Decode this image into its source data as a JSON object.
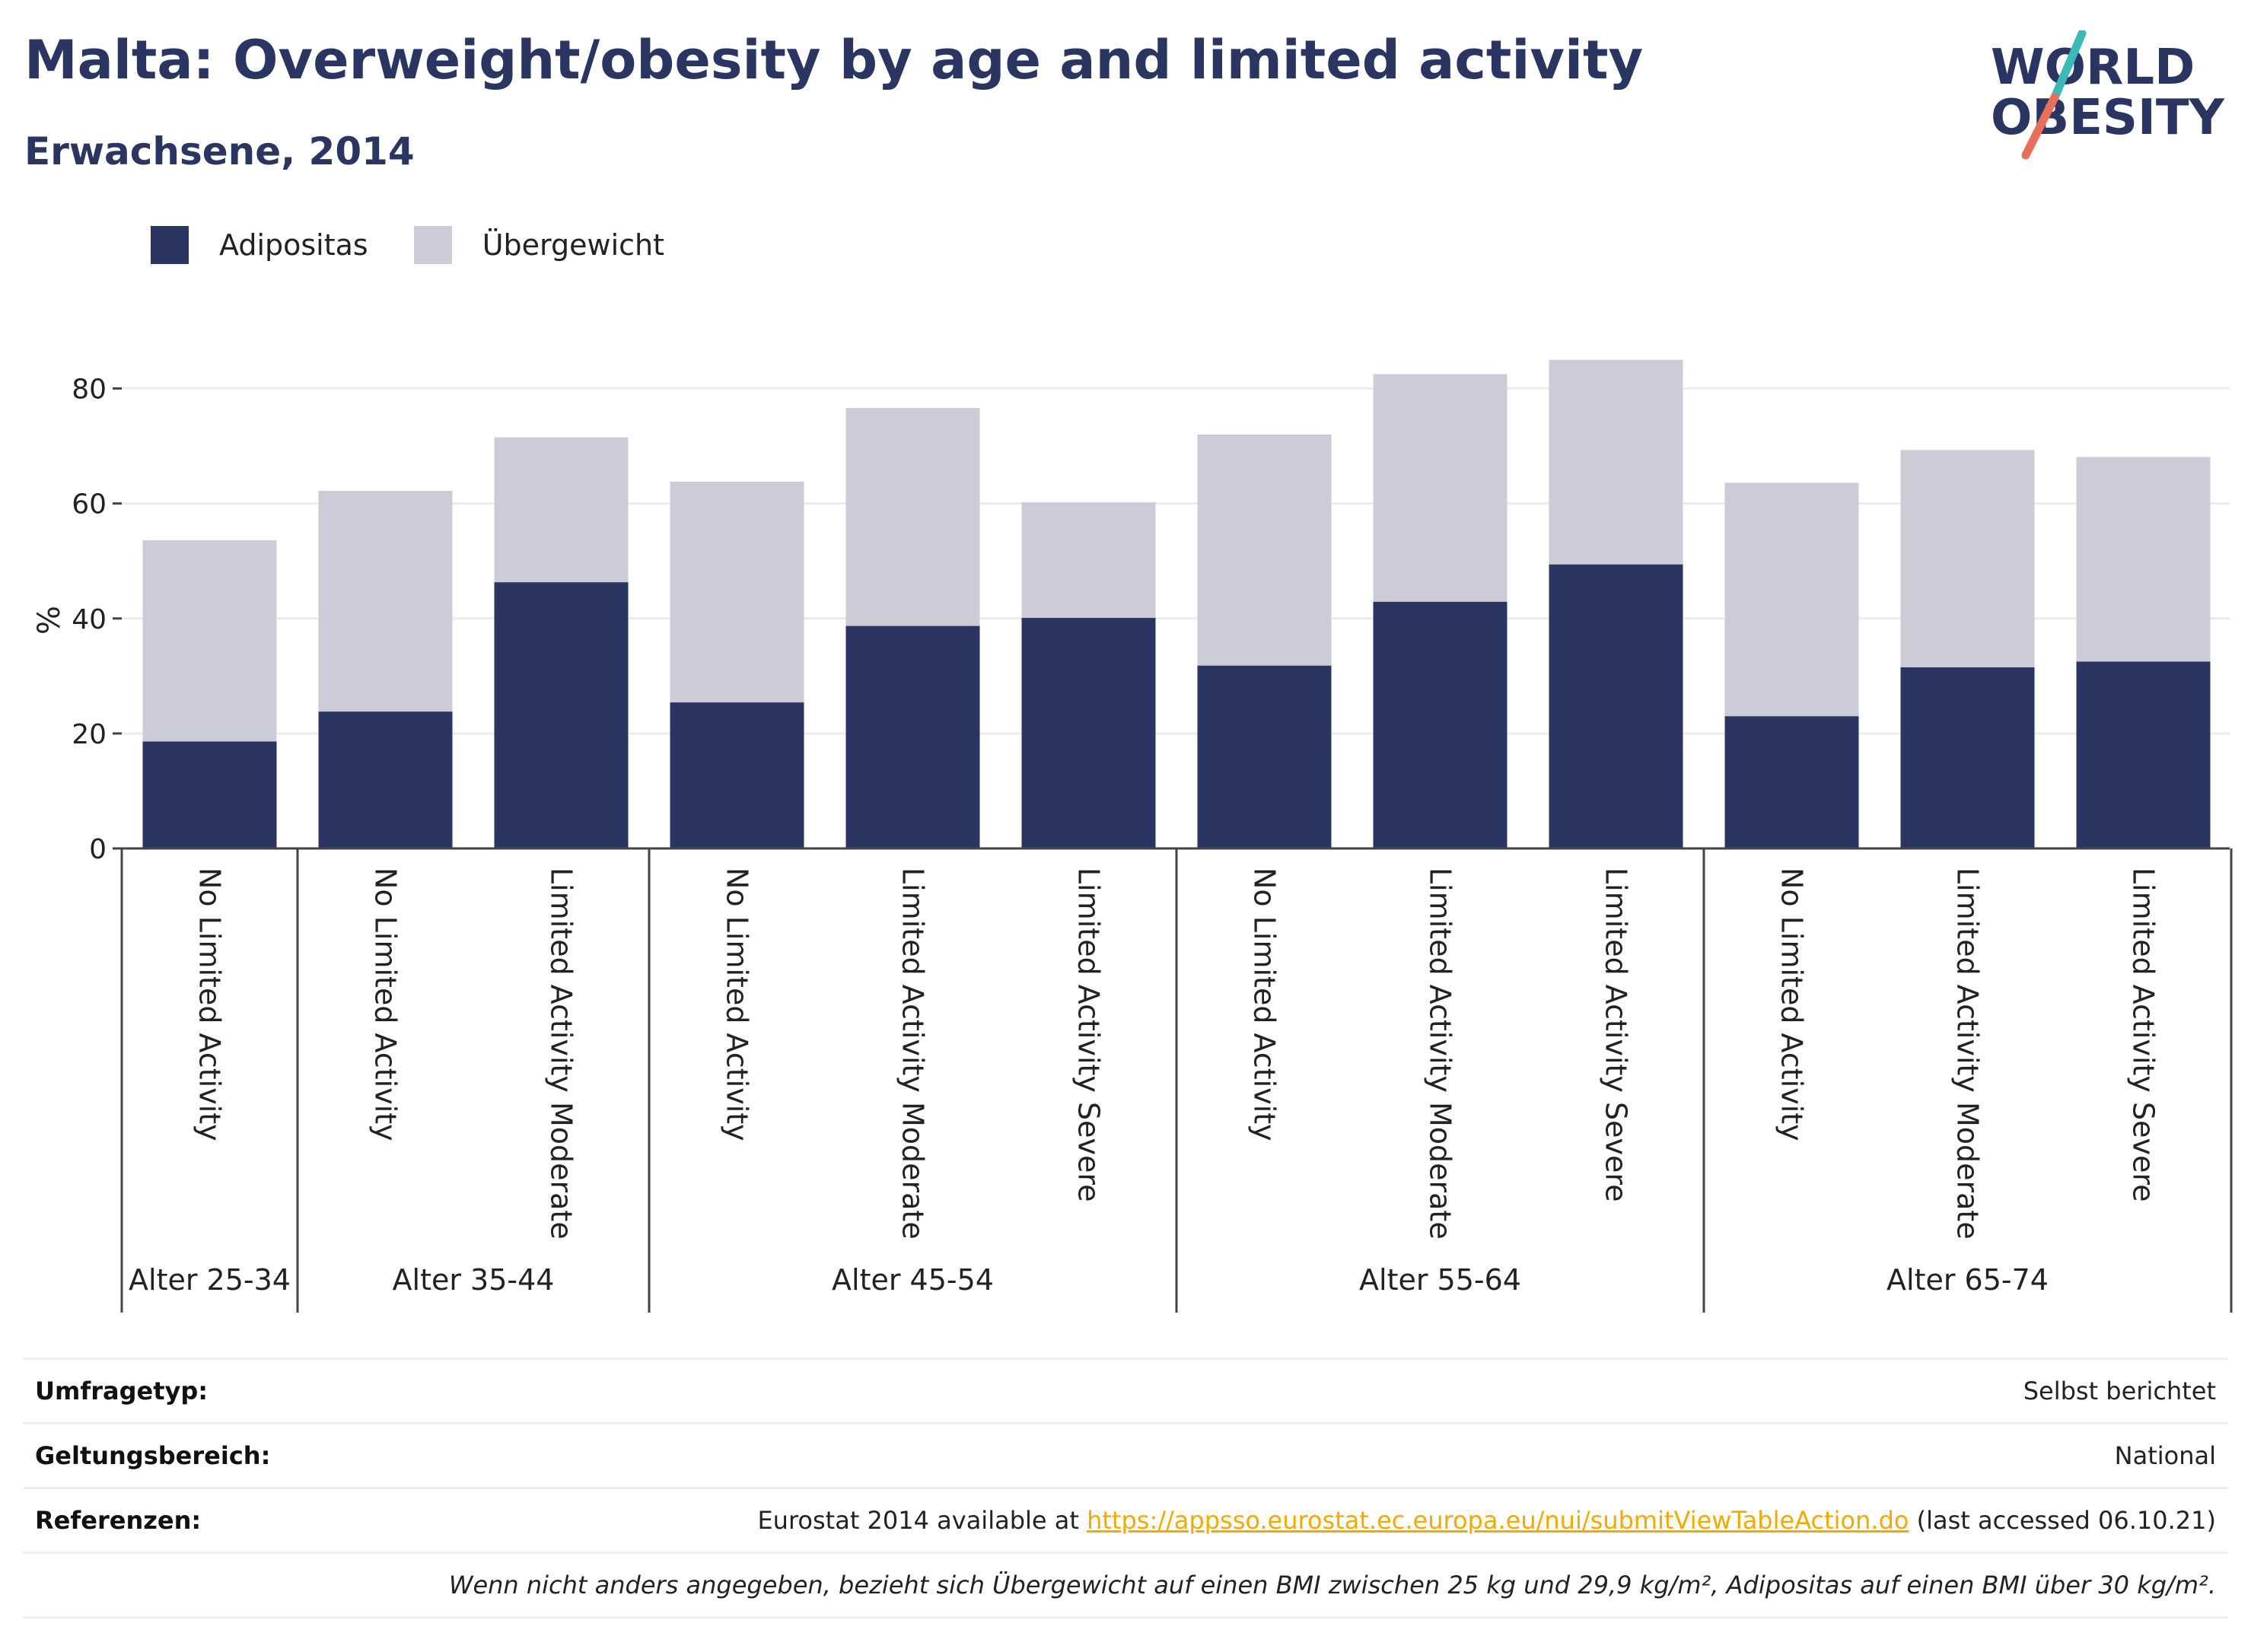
{
  "title": "Malta: Overweight/obesity by age and limited activity",
  "subtitle": "Erwachsene, 2014",
  "logo": {
    "line1": "WORLD",
    "line2": "OBESITY"
  },
  "colors": {
    "obesity": "#2a3562",
    "overweight": "#cbccd8",
    "accent_teal": "#3bb8b8",
    "accent_coral": "#e8705a",
    "link": "#f2a900"
  },
  "chart_data": {
    "type": "bar",
    "stacked": true,
    "ylabel": "%",
    "ylim": [
      0,
      90
    ],
    "yticks": [
      0,
      20,
      40,
      60,
      80
    ],
    "grid": true,
    "legend_placement": "top-left",
    "legend": [
      "Adipositas",
      "Übergewicht"
    ],
    "groups": [
      {
        "name": "Alter 25-34",
        "categories": [
          "No Limited Activity"
        ]
      },
      {
        "name": "Alter 35-44",
        "categories": [
          "No Limited Activity",
          "Limited Activity Moderate"
        ]
      },
      {
        "name": "Alter 45-54",
        "categories": [
          "No Limited Activity",
          "Limited Activity Moderate",
          "Limited Activity Severe"
        ]
      },
      {
        "name": "Alter 55-64",
        "categories": [
          "No Limited Activity",
          "Limited Activity Moderate",
          "Limited Activity Severe"
        ]
      },
      {
        "name": "Alter 65-74",
        "categories": [
          "No Limited Activity",
          "Limited Activity Moderate",
          "Limited Activity Severe"
        ]
      }
    ],
    "series": [
      {
        "name": "Adipositas",
        "values": [
          18.6,
          23.8,
          46.3,
          25.4,
          38.7,
          40.1,
          31.8,
          42.9,
          49.4,
          23.0,
          31.5,
          32.5
        ]
      },
      {
        "name": "Übergewicht",
        "values": [
          35.0,
          38.4,
          25.2,
          38.4,
          37.9,
          20.1,
          40.2,
          39.6,
          35.6,
          40.6,
          37.8,
          35.6
        ]
      }
    ]
  },
  "meta": {
    "survey_label": "Umfragetyp:",
    "survey_value": "Selbst berichtet",
    "scope_label": "Geltungsbereich:",
    "scope_value": "National",
    "ref_label": "Referenzen:",
    "ref_prefix": "Eurostat 2014 available at ",
    "ref_link": "https://appsso.eurostat.ec.europa.eu/nui/submitViewTableAction.do",
    "ref_suffix": " (last accessed 06.10.21)",
    "note": "Wenn nicht anders angegeben, bezieht sich Übergewicht auf einen BMI zwischen 25 kg und 29,9 kg/m², Adipositas auf einen BMI über 30 kg/m²."
  }
}
